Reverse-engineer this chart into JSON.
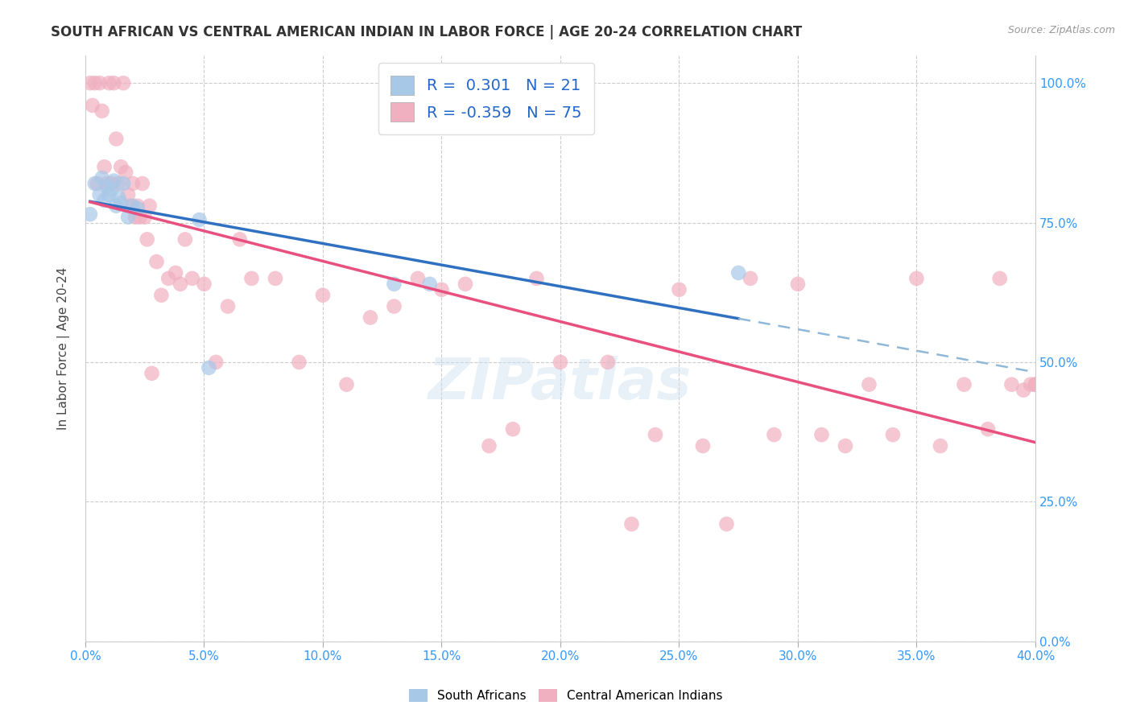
{
  "title": "SOUTH AFRICAN VS CENTRAL AMERICAN INDIAN IN LABOR FORCE | AGE 20-24 CORRELATION CHART",
  "source": "Source: ZipAtlas.com",
  "ylabel": "In Labor Force | Age 20-24",
  "xlim": [
    0.0,
    0.4
  ],
  "ylim": [
    0.0,
    1.05
  ],
  "blue_r": 0.301,
  "blue_n": 21,
  "pink_r": -0.359,
  "pink_n": 75,
  "blue_color": "#a8c8e8",
  "pink_color": "#f0b0c0",
  "blue_line_color": "#3070c0",
  "pink_line_color": "#e85080",
  "dashed_line_color": "#90b8d8",
  "watermark": "ZIPatlas",
  "blue_scatter_x": [
    0.002,
    0.004,
    0.006,
    0.007,
    0.008,
    0.009,
    0.01,
    0.011,
    0.012,
    0.013,
    0.014,
    0.015,
    0.016,
    0.018,
    0.02,
    0.022,
    0.048,
    0.052,
    0.13,
    0.145,
    0.275
  ],
  "blue_scatter_y": [
    0.765,
    0.82,
    0.8,
    0.83,
    0.79,
    0.815,
    0.8,
    0.81,
    0.825,
    0.78,
    0.795,
    0.785,
    0.82,
    0.76,
    0.78,
    0.775,
    0.755,
    0.49,
    0.64,
    0.64,
    0.66
  ],
  "pink_scatter_x": [
    0.002,
    0.003,
    0.004,
    0.005,
    0.006,
    0.007,
    0.008,
    0.009,
    0.01,
    0.011,
    0.012,
    0.013,
    0.014,
    0.015,
    0.016,
    0.017,
    0.018,
    0.019,
    0.02,
    0.021,
    0.022,
    0.023,
    0.024,
    0.025,
    0.026,
    0.027,
    0.028,
    0.03,
    0.032,
    0.035,
    0.038,
    0.04,
    0.042,
    0.045,
    0.05,
    0.055,
    0.06,
    0.065,
    0.07,
    0.08,
    0.09,
    0.1,
    0.11,
    0.12,
    0.13,
    0.14,
    0.15,
    0.16,
    0.17,
    0.18,
    0.19,
    0.2,
    0.22,
    0.23,
    0.24,
    0.25,
    0.26,
    0.27,
    0.28,
    0.29,
    0.3,
    0.31,
    0.32,
    0.33,
    0.34,
    0.35,
    0.36,
    0.37,
    0.38,
    0.385,
    0.39,
    0.395,
    0.398,
    0.4,
    0.4
  ],
  "pink_scatter_y": [
    1.0,
    0.96,
    1.0,
    0.82,
    1.0,
    0.95,
    0.85,
    0.82,
    1.0,
    0.82,
    1.0,
    0.9,
    0.82,
    0.85,
    1.0,
    0.84,
    0.8,
    0.78,
    0.82,
    0.76,
    0.78,
    0.76,
    0.82,
    0.76,
    0.72,
    0.78,
    0.48,
    0.68,
    0.62,
    0.65,
    0.66,
    0.64,
    0.72,
    0.65,
    0.64,
    0.5,
    0.6,
    0.72,
    0.65,
    0.65,
    0.5,
    0.62,
    0.46,
    0.58,
    0.6,
    0.65,
    0.63,
    0.64,
    0.35,
    0.38,
    0.65,
    0.5,
    0.5,
    0.21,
    0.37,
    0.63,
    0.35,
    0.21,
    0.65,
    0.37,
    0.64,
    0.37,
    0.35,
    0.46,
    0.37,
    0.65,
    0.35,
    0.46,
    0.38,
    0.65,
    0.46,
    0.45,
    0.46,
    0.46,
    0.46
  ]
}
